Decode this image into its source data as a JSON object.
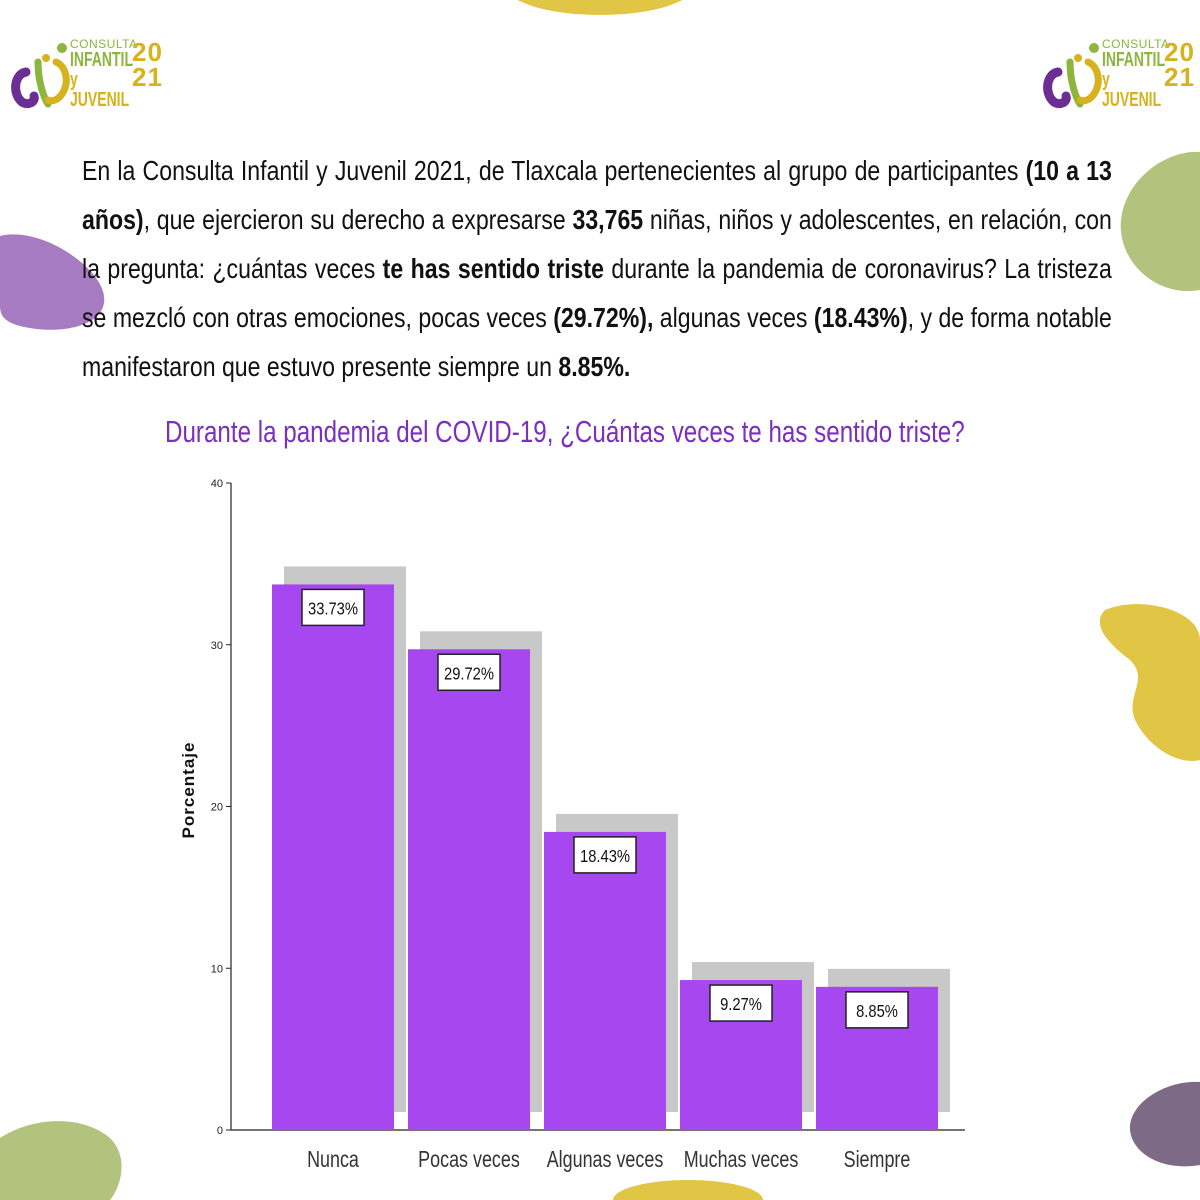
{
  "logo": {
    "line1": "CONSULTA",
    "line2": "INFANTIL",
    "line3": "y JUVENIL",
    "year_top": "20",
    "year_bottom": "21"
  },
  "intro": {
    "p1": "En la Consulta Infantil y Juvenil 2021, de Tlaxcala pertenecientes al grupo de participantes ",
    "b1": "(10 a 13 años)",
    "p2": ", que ejercieron su derecho a expresarse ",
    "b2": "33,765",
    "p3": " niñas, niños y adolescentes, en relación, con la pregunta: ¿cuántas veces ",
    "b3": "te has sentido triste",
    "p4": " durante la pandemia de coronavirus? La tristeza se mezcló con otras emociones, pocas veces ",
    "b4": "(29.72%),",
    "p5": " algunas veces ",
    "b5": "(18.43%)",
    "p6": ", y de forma notable manifestaron que estuvo presente siempre un ",
    "b6": "8.85%.",
    "p7": ""
  },
  "colors": {
    "bar": "#a647f0",
    "shadow": "#c8c8c8",
    "title": "#7b2fbf",
    "green": "#b3c27c",
    "yellow": "#e1c645",
    "purple": "#a77bc2",
    "dark_purple": "#7d6a86"
  },
  "chart_data": {
    "type": "bar",
    "title": "Durante la pandemia del COVID-19, ¿Cuántas veces te has sentido triste?",
    "ylabel": "Porcentaje",
    "xlabel": "",
    "categories": [
      "Nunca",
      "Pocas veces",
      "Algunas veces",
      "Muchas veces",
      "Siempre"
    ],
    "values": [
      33.73,
      29.72,
      18.43,
      9.27,
      8.85
    ],
    "value_labels": [
      "33.73%",
      "29.72%",
      "18.43%",
      "9.27%",
      "8.85%"
    ],
    "ylim": [
      0,
      40
    ],
    "yticks": [
      0,
      10,
      20,
      30,
      40
    ],
    "grid": false,
    "legend": "none"
  }
}
